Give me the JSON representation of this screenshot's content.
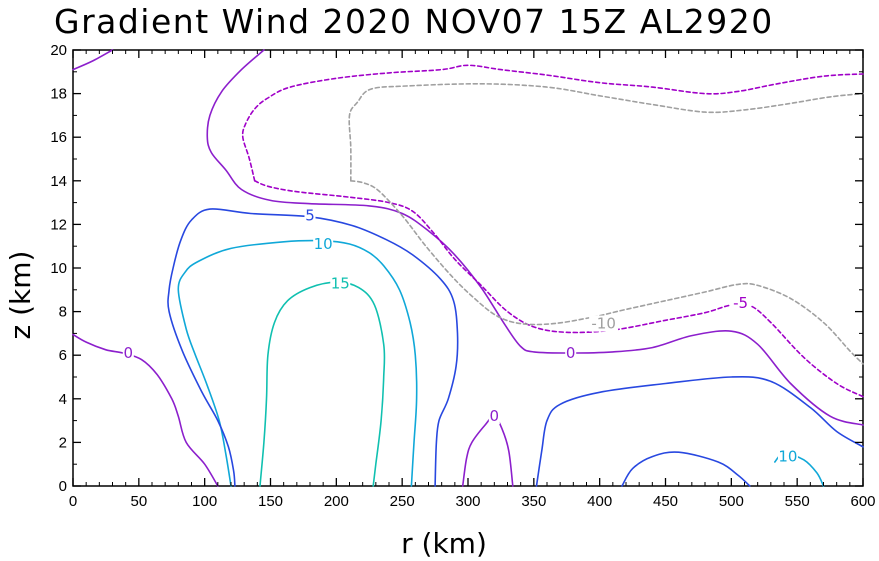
{
  "chart_data": {
    "type": "contour",
    "title": "Gradient Wind 2020 NOV07 15Z  AL2920",
    "xlabel": "r (km)",
    "ylabel": "z (km)",
    "xlim": [
      0,
      600
    ],
    "ylim": [
      0,
      20
    ],
    "xticks": [
      0,
      50,
      100,
      150,
      200,
      250,
      300,
      350,
      400,
      450,
      500,
      550,
      600
    ],
    "yticks": [
      0,
      2,
      4,
      6,
      8,
      10,
      12,
      14,
      16,
      18,
      20
    ],
    "colors": {
      "neg10": "#a0a0a0",
      "neg5": "#a000c8",
      "zero": "#8c1fcc",
      "pos5": "#2848e0",
      "pos10": "#10a8d8",
      "pos15": "#10c0b0"
    },
    "contours": [
      {
        "level": "15",
        "color_key": "pos15",
        "dashed": false,
        "label": {
          "text": "15",
          "at": [
            203,
            9.3
          ]
        },
        "lines": [
          [
            [
              142,
              0
            ],
            [
              145,
              2
            ],
            [
              147,
              4
            ],
            [
              148,
              6
            ],
            [
              153,
              7.5
            ],
            [
              163,
              8.5
            ],
            [
              180,
              9.1
            ],
            [
              200,
              9.35
            ],
            [
              217,
              9.1
            ],
            [
              229,
              8.3
            ],
            [
              236,
              6.5
            ],
            [
              236,
              5
            ],
            [
              234,
              3
            ],
            [
              230,
              1
            ],
            [
              228,
              0
            ]
          ]
        ]
      },
      {
        "level": "10",
        "color_key": "pos10",
        "dashed": false,
        "label": {
          "text": "10",
          "at": [
            190,
            11.1
          ]
        },
        "lines": [
          [
            [
              120,
              0
            ],
            [
              116,
              1.5
            ],
            [
              111,
              3
            ],
            [
              102,
              4.6
            ],
            [
              93,
              6
            ],
            [
              86,
              7.2
            ],
            [
              80,
              9
            ],
            [
              85,
              9.8
            ],
            [
              95,
              10.3
            ],
            [
              120,
              10.9
            ],
            [
              160,
              11.2
            ],
            [
              190,
              11.25
            ],
            [
              210,
              11.1
            ],
            [
              225,
              10.7
            ],
            [
              236,
              10.1
            ],
            [
              248,
              9
            ],
            [
              256,
              7.5
            ],
            [
              260,
              6
            ],
            [
              261,
              4
            ],
            [
              259,
              2
            ],
            [
              257,
              0
            ]
          ]
        ]
      },
      {
        "level": "5",
        "color_key": "pos5",
        "dashed": false,
        "label": {
          "text": "5",
          "at": [
            180,
            12.4
          ]
        },
        "lines": [
          [
            [
              123,
              0
            ],
            [
              122,
              0.7
            ],
            [
              118,
              1.8
            ],
            [
              110,
              3
            ],
            [
              98,
              4.3
            ],
            [
              83,
              6.2
            ],
            [
              73,
              8
            ],
            [
              73,
              9
            ],
            [
              76,
              10
            ],
            [
              82,
              11.3
            ],
            [
              90,
              12.2
            ],
            [
              104,
              12.7
            ],
            [
              135,
              12.5
            ],
            [
              180,
              12.35
            ],
            [
              212,
              11.95
            ],
            [
              238,
              11.3
            ],
            [
              258,
              10.6
            ],
            [
              279,
              9.5
            ],
            [
              289,
              8.5
            ],
            [
              292,
              7
            ],
            [
              291,
              5.5
            ],
            [
              285,
              4
            ],
            [
              278,
              3
            ],
            [
              276,
              2
            ],
            [
              275,
              0
            ]
          ],
          [
            [
              352,
              0
            ],
            [
              356,
              1.6
            ],
            [
              360,
              3
            ],
            [
              370,
              3.75
            ],
            [
              400,
              4.3
            ],
            [
              450,
              4.7
            ],
            [
              500,
              5.0
            ],
            [
              530,
              4.8
            ],
            [
              560,
              3.6
            ],
            [
              580,
              2.5
            ],
            [
              600,
              1.8
            ]
          ],
          [
            [
              417,
              0
            ],
            [
              425,
              0.8
            ],
            [
              440,
              1.35
            ],
            [
              460,
              1.55
            ],
            [
              490,
              1.1
            ],
            [
              505,
              0.5
            ],
            [
              514,
              0
            ]
          ]
        ]
      },
      {
        "level": "10",
        "color_key": "pos10",
        "dashed": false,
        "label": {
          "text": "10",
          "at": [
            543,
            1.35
          ]
        },
        "lines": [
          [
            [
              533,
              1.1
            ],
            [
              540,
              1.5
            ],
            [
              555,
              1.2
            ],
            [
              565,
              0.6
            ],
            [
              570,
              0
            ]
          ]
        ]
      },
      {
        "level": "0",
        "color_key": "zero",
        "dashed": false,
        "label": {
          "text": "0",
          "at": [
            42,
            6.1
          ]
        },
        "lines": [
          [
            [
              0,
              6.95
            ],
            [
              10,
              6.6
            ],
            [
              25,
              6.25
            ],
            [
              38,
              6.1
            ],
            [
              52,
              5.8
            ],
            [
              64,
              5.1
            ],
            [
              75,
              4
            ],
            [
              80,
              3.2
            ],
            [
              86,
              2
            ],
            [
              100,
              1
            ],
            [
              110,
              0
            ]
          ],
          [
            [
              0,
              19.1
            ],
            [
              15,
              19.5
            ],
            [
              30,
              20
            ]
          ]
        ]
      },
      {
        "level": "0",
        "color_key": "zero",
        "dashed": false,
        "label": {
          "text": "0",
          "at": [
            320,
            3.2
          ]
        },
        "lines": [
          [
            [
              296,
              0
            ],
            [
              299,
              1.3
            ],
            [
              303,
              2
            ],
            [
              313,
              2.8
            ],
            [
              320,
              3.2
            ],
            [
              326,
              2.6
            ],
            [
              331,
              1.6
            ],
            [
              334,
              0
            ]
          ]
        ]
      },
      {
        "level": "0",
        "color_key": "zero",
        "dashed": false,
        "label": {
          "text": "0",
          "at": [
            378,
            6.1
          ]
        },
        "lines": [
          [
            [
              145,
              20
            ],
            [
              128,
              19.1
            ],
            [
              113,
              18.1
            ],
            [
              104,
              17
            ],
            [
              102,
              16
            ],
            [
              105,
              15.3
            ],
            [
              116,
              14.5
            ],
            [
              128,
              13.6
            ],
            [
              150,
              13.1
            ],
            [
              180,
              12.95
            ],
            [
              225,
              12.85
            ],
            [
              250,
              12.5
            ],
            [
              270,
              11.7
            ],
            [
              290,
              10.6
            ],
            [
              310,
              9.1
            ],
            [
              328,
              7.4
            ],
            [
              340,
              6.4
            ],
            [
              350,
              6.15
            ],
            [
              378,
              6.1
            ],
            [
              410,
              6.15
            ],
            [
              440,
              6.35
            ],
            [
              470,
              6.9
            ],
            [
              500,
              7.1
            ],
            [
              520,
              6.5
            ],
            [
              545,
              4.7
            ],
            [
              575,
              3.2
            ],
            [
              600,
              2.8
            ]
          ]
        ]
      },
      {
        "level": "-5",
        "color_key": "neg5",
        "dashed": true,
        "label": {
          "text": "-5",
          "at": [
            507,
            8.4
          ]
        },
        "lines": [
          [
            [
              138,
              14.0
            ],
            [
              148,
              13.75
            ],
            [
              170,
              13.5
            ],
            [
              210,
              13.25
            ],
            [
              240,
              13.0
            ],
            [
              258,
              12.6
            ],
            [
              274,
              11.6
            ],
            [
              290,
              10.4
            ],
            [
              310,
              9.2
            ],
            [
              330,
              8.0
            ],
            [
              350,
              7.3
            ],
            [
              375,
              7.05
            ],
            [
              410,
              7.15
            ],
            [
              450,
              7.6
            ],
            [
              480,
              7.95
            ],
            [
              500,
              8.3
            ],
            [
              515,
              8.25
            ],
            [
              530,
              7.5
            ],
            [
              555,
              5.9
            ],
            [
              580,
              4.7
            ],
            [
              600,
              4.1
            ]
          ],
          [
            [
              138,
              14.0
            ],
            [
              134,
              15.0
            ],
            [
              129,
              16.0
            ],
            [
              131,
              16.6
            ],
            [
              138,
              17.3
            ],
            [
              148,
              17.8
            ],
            [
              165,
              18.3
            ],
            [
              200,
              18.7
            ],
            [
              240,
              18.95
            ],
            [
              280,
              19.1
            ],
            [
              300,
              19.3
            ],
            [
              325,
              19.1
            ],
            [
              360,
              18.85
            ],
            [
              400,
              18.5
            ],
            [
              440,
              18.3
            ],
            [
              480,
              18.0
            ],
            [
              505,
              18.1
            ],
            [
              535,
              18.45
            ],
            [
              570,
              18.8
            ],
            [
              600,
              18.9
            ]
          ]
        ]
      },
      {
        "level": "-10",
        "color_key": "neg10",
        "dashed": true,
        "label": {
          "text": "-10",
          "at": [
            403,
            7.45
          ]
        },
        "lines": [
          [
            [
              211,
              14.0
            ],
            [
              221,
              13.9
            ],
            [
              232,
              13.55
            ],
            [
              250,
              12.4
            ],
            [
              268,
              11.0
            ],
            [
              288,
              9.6
            ],
            [
              305,
              8.6
            ],
            [
              322,
              7.8
            ],
            [
              340,
              7.45
            ],
            [
              365,
              7.45
            ],
            [
              395,
              7.75
            ],
            [
              420,
              8.1
            ],
            [
              450,
              8.5
            ],
            [
              480,
              8.9
            ],
            [
              505,
              9.25
            ],
            [
              520,
              9.2
            ],
            [
              545,
              8.6
            ],
            [
              570,
              7.5
            ],
            [
              590,
              6.2
            ],
            [
              600,
              5.6
            ]
          ],
          [
            [
              211,
              14.0
            ],
            [
              211,
              15.5
            ],
            [
              210,
              17.0
            ],
            [
              216,
              17.6
            ],
            [
              226,
              18.2
            ],
            [
              253,
              18.35
            ],
            [
              310,
              18.45
            ],
            [
              360,
              18.3
            ],
            [
              400,
              17.9
            ],
            [
              440,
              17.5
            ],
            [
              480,
              17.15
            ],
            [
              510,
              17.25
            ],
            [
              545,
              17.55
            ],
            [
              575,
              17.85
            ],
            [
              600,
              18.0
            ]
          ]
        ]
      }
    ]
  }
}
